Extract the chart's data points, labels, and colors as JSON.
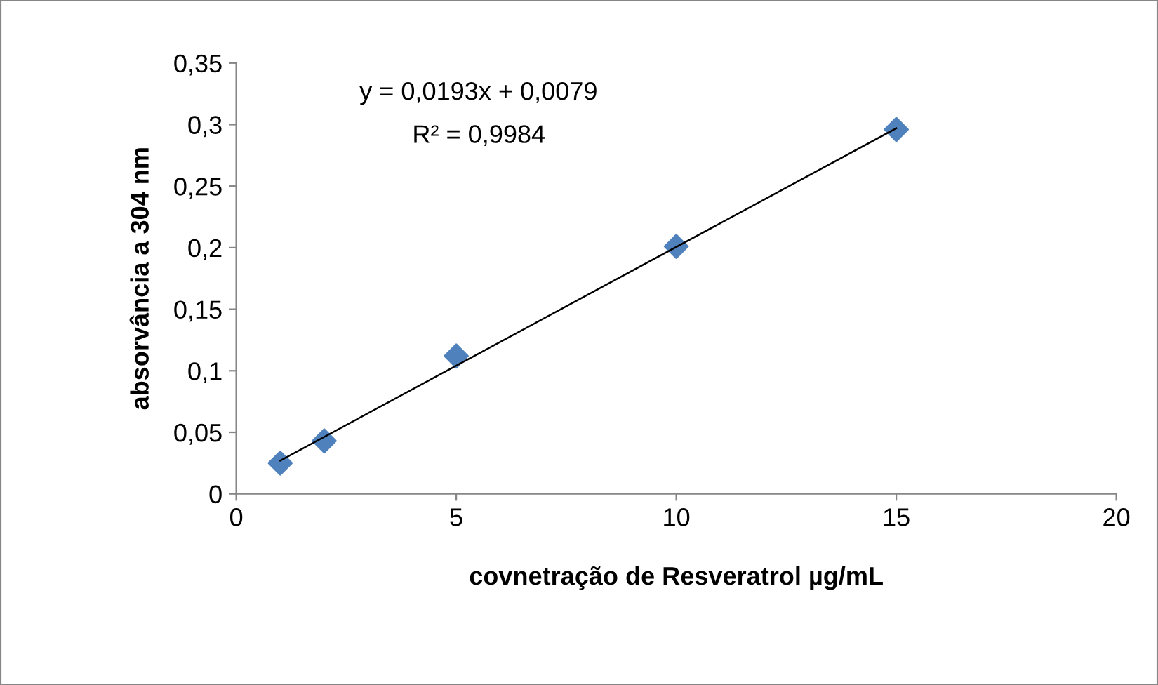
{
  "chart_data": {
    "type": "scatter",
    "xlabel": "covnetração de Resveratrol µg/mL",
    "ylabel": "absorvância a 304 nm",
    "annotations": [
      "y = 0,0193x + 0,0079",
      "R² = 0,9984"
    ],
    "series": [
      {
        "color": "#4f81bd",
        "marker": "diamond",
        "x": [
          1,
          2,
          5,
          10,
          15
        ],
        "values": [
          0.025,
          0.043,
          0.112,
          0.201,
          0.296
        ]
      },
      {
        "type": "line",
        "color": "#000000",
        "marker": "none",
        "x": [
          1,
          15
        ],
        "values": [
          0.027,
          0.297
        ]
      }
    ],
    "xlim": [
      0,
      20
    ],
    "xticks": [
      0,
      5,
      10,
      15,
      20
    ],
    "ylim": [
      0,
      0.35
    ],
    "yticks": [
      {
        "value": 0,
        "label": "0"
      },
      {
        "value": 0.05,
        "label": "0,05"
      },
      {
        "value": 0.1,
        "label": "0,1"
      },
      {
        "value": 0.15,
        "label": "0,15"
      },
      {
        "value": 0.2,
        "label": "0,2"
      },
      {
        "value": 0.25,
        "label": "0,25"
      },
      {
        "value": 0.3,
        "label": "0,3"
      },
      {
        "value": 0.35,
        "label": "0,35"
      }
    ],
    "grid": false,
    "legend": false
  }
}
